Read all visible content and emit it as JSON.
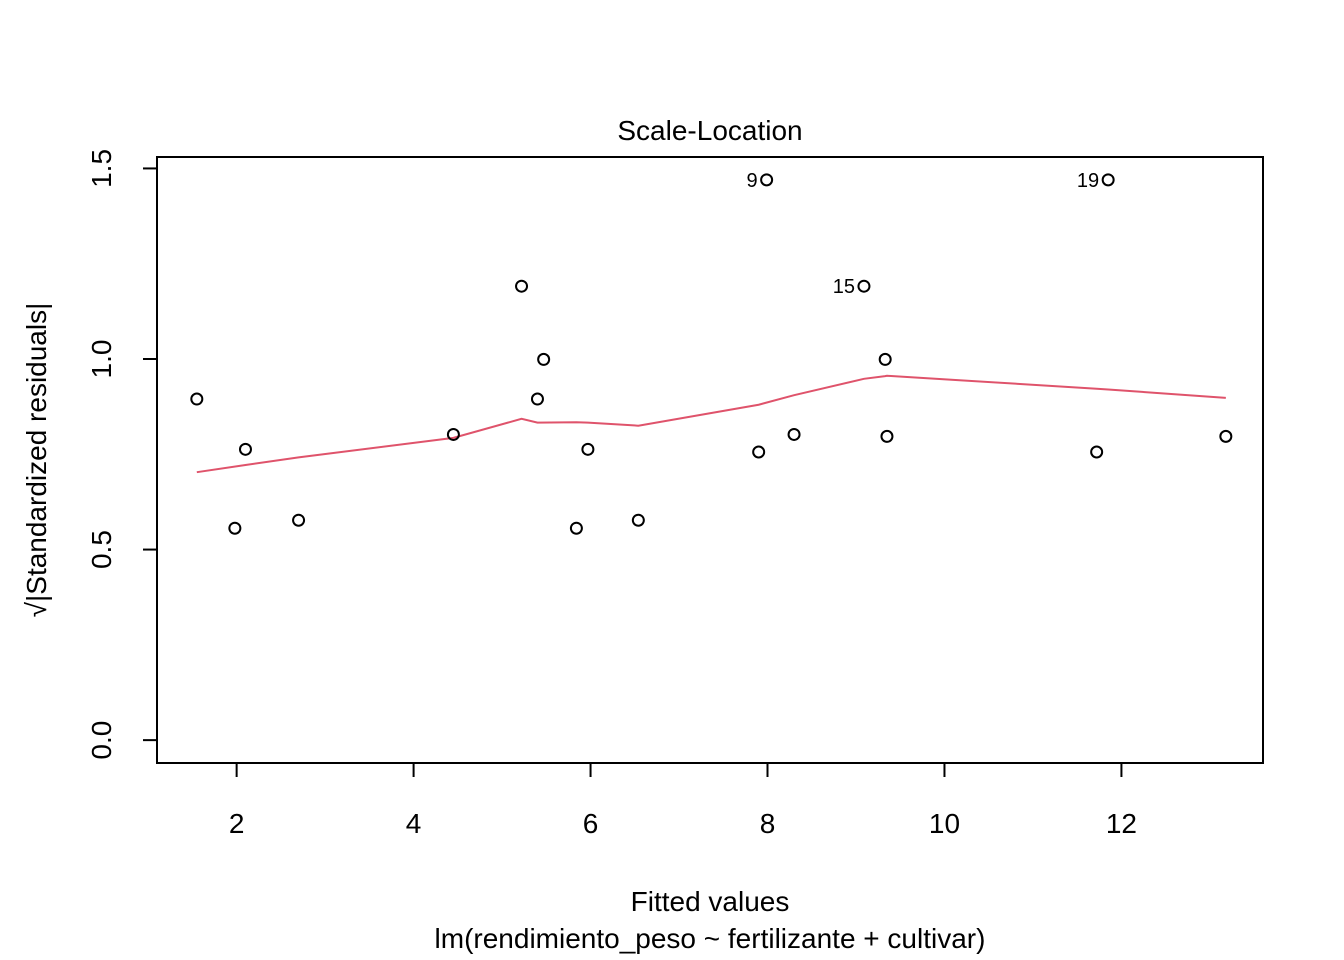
{
  "chart_data": {
    "type": "scatter",
    "title": "Scale-Location",
    "xlabel": "Fitted values",
    "subtitle": "lm(rendimiento_peso ~ fertilizante + cultivar)",
    "ylabel": "Standardized residuals",
    "ylabel_prefix": "√|",
    "ylabel_suffix": "|",
    "xlim": [
      1.1,
      13.6
    ],
    "ylim": [
      -0.06,
      1.53
    ],
    "x_ticks": [
      2,
      4,
      6,
      8,
      10,
      12
    ],
    "x_tick_labels": [
      "2",
      "4",
      "6",
      "8",
      "10",
      "12"
    ],
    "y_ticks": [
      0.0,
      0.5,
      1.0,
      1.5
    ],
    "y_tick_labels": [
      "0.0",
      "0.5",
      "1.0",
      "1.5"
    ],
    "points": [
      {
        "x": 1.55,
        "y": 0.895,
        "label": ""
      },
      {
        "x": 1.98,
        "y": 0.556,
        "label": ""
      },
      {
        "x": 2.1,
        "y": 0.763,
        "label": ""
      },
      {
        "x": 2.7,
        "y": 0.577,
        "label": ""
      },
      {
        "x": 4.45,
        "y": 0.802,
        "label": ""
      },
      {
        "x": 5.22,
        "y": 1.191,
        "label": ""
      },
      {
        "x": 5.4,
        "y": 0.895,
        "label": ""
      },
      {
        "x": 5.47,
        "y": 0.999,
        "label": ""
      },
      {
        "x": 5.84,
        "y": 0.556,
        "label": ""
      },
      {
        "x": 5.97,
        "y": 0.763,
        "label": ""
      },
      {
        "x": 6.54,
        "y": 0.577,
        "label": ""
      },
      {
        "x": 7.9,
        "y": 0.756,
        "label": ""
      },
      {
        "x": 7.99,
        "y": 1.47,
        "label": "9"
      },
      {
        "x": 8.3,
        "y": 0.802,
        "label": ""
      },
      {
        "x": 9.09,
        "y": 1.191,
        "label": "15"
      },
      {
        "x": 9.33,
        "y": 0.999,
        "label": ""
      },
      {
        "x": 9.35,
        "y": 0.797,
        "label": ""
      },
      {
        "x": 11.72,
        "y": 0.756,
        "label": ""
      },
      {
        "x": 11.85,
        "y": 1.47,
        "label": "19"
      },
      {
        "x": 13.18,
        "y": 0.797,
        "label": ""
      }
    ],
    "smoother": {
      "color": "#DF536B",
      "x": [
        1.55,
        2.1,
        2.7,
        4.45,
        5.22,
        5.4,
        5.84,
        5.97,
        6.54,
        7.9,
        8.3,
        9.09,
        9.33,
        9.35,
        11.72,
        11.85,
        13.18
      ],
      "y": [
        0.703,
        0.722,
        0.742,
        0.793,
        0.843,
        0.833,
        0.834,
        0.833,
        0.825,
        0.88,
        0.905,
        0.948,
        0.955,
        0.956,
        0.922,
        0.92,
        0.898
      ]
    },
    "point_color": "#000000",
    "grid": false,
    "legend": "none"
  }
}
